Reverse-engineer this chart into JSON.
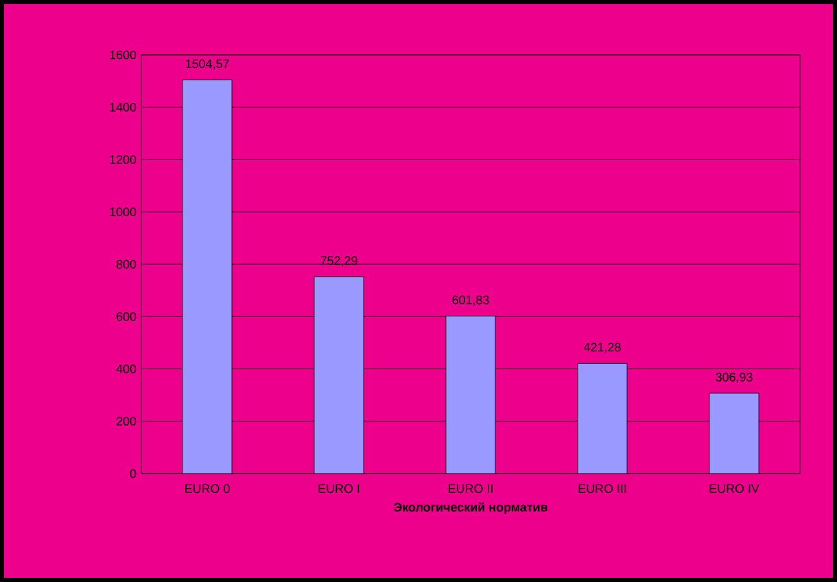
{
  "chart_data": {
    "type": "bar",
    "xlabel": "Экологический норматив",
    "categories": [
      "EURO 0",
      "EURO I",
      "EURO II",
      "EURO III",
      "EURO IV"
    ],
    "values": [
      1504.57,
      752.29,
      601.83,
      421.28,
      306.93
    ],
    "value_labels": [
      "1504,57",
      "752,29",
      "601,83",
      "421,28",
      "306,93"
    ],
    "color": "#9999ff",
    "ylim": [
      0,
      1600
    ],
    "yticks": [
      0,
      200,
      400,
      600,
      800,
      1000,
      1200,
      1400,
      1600
    ],
    "grid": "y"
  }
}
